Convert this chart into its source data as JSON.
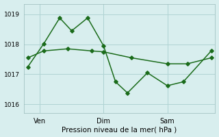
{
  "xlabel": "Pression niveau de la mer( hPa )",
  "ylim": [
    1015.7,
    1019.35
  ],
  "xlim": [
    0,
    24
  ],
  "yticks": [
    1016,
    1017,
    1018,
    1019
  ],
  "xtick_positions": [
    2,
    10,
    18
  ],
  "xtick_labels": [
    "Ven",
    "Dim",
    "Sam"
  ],
  "background_color": "#d8eeee",
  "line_color": "#1a6b1a",
  "grid_color": "#b0d4d4",
  "line1_x": [
    0.5,
    2.5,
    4.5,
    6.0,
    8.0,
    10.0,
    11.5,
    13.0,
    15.5,
    18.0,
    20.0,
    23.5
  ],
  "line1_y": [
    1017.25,
    1018.02,
    1018.88,
    1018.45,
    1018.88,
    1017.95,
    1016.75,
    1016.38,
    1017.05,
    1016.62,
    1016.75,
    1017.78
  ],
  "line2_x": [
    0.5,
    2.5,
    5.5,
    8.5,
    10.0,
    13.5,
    18.0,
    20.5,
    23.5
  ],
  "line2_y": [
    1017.55,
    1017.78,
    1017.85,
    1017.78,
    1017.75,
    1017.55,
    1017.35,
    1017.35,
    1017.55
  ],
  "marker_size": 2.8,
  "linewidth": 1.1,
  "ylabel_fontsize": 6.5,
  "xlabel_fontsize": 7.5,
  "xtick_fontsize": 7.0
}
